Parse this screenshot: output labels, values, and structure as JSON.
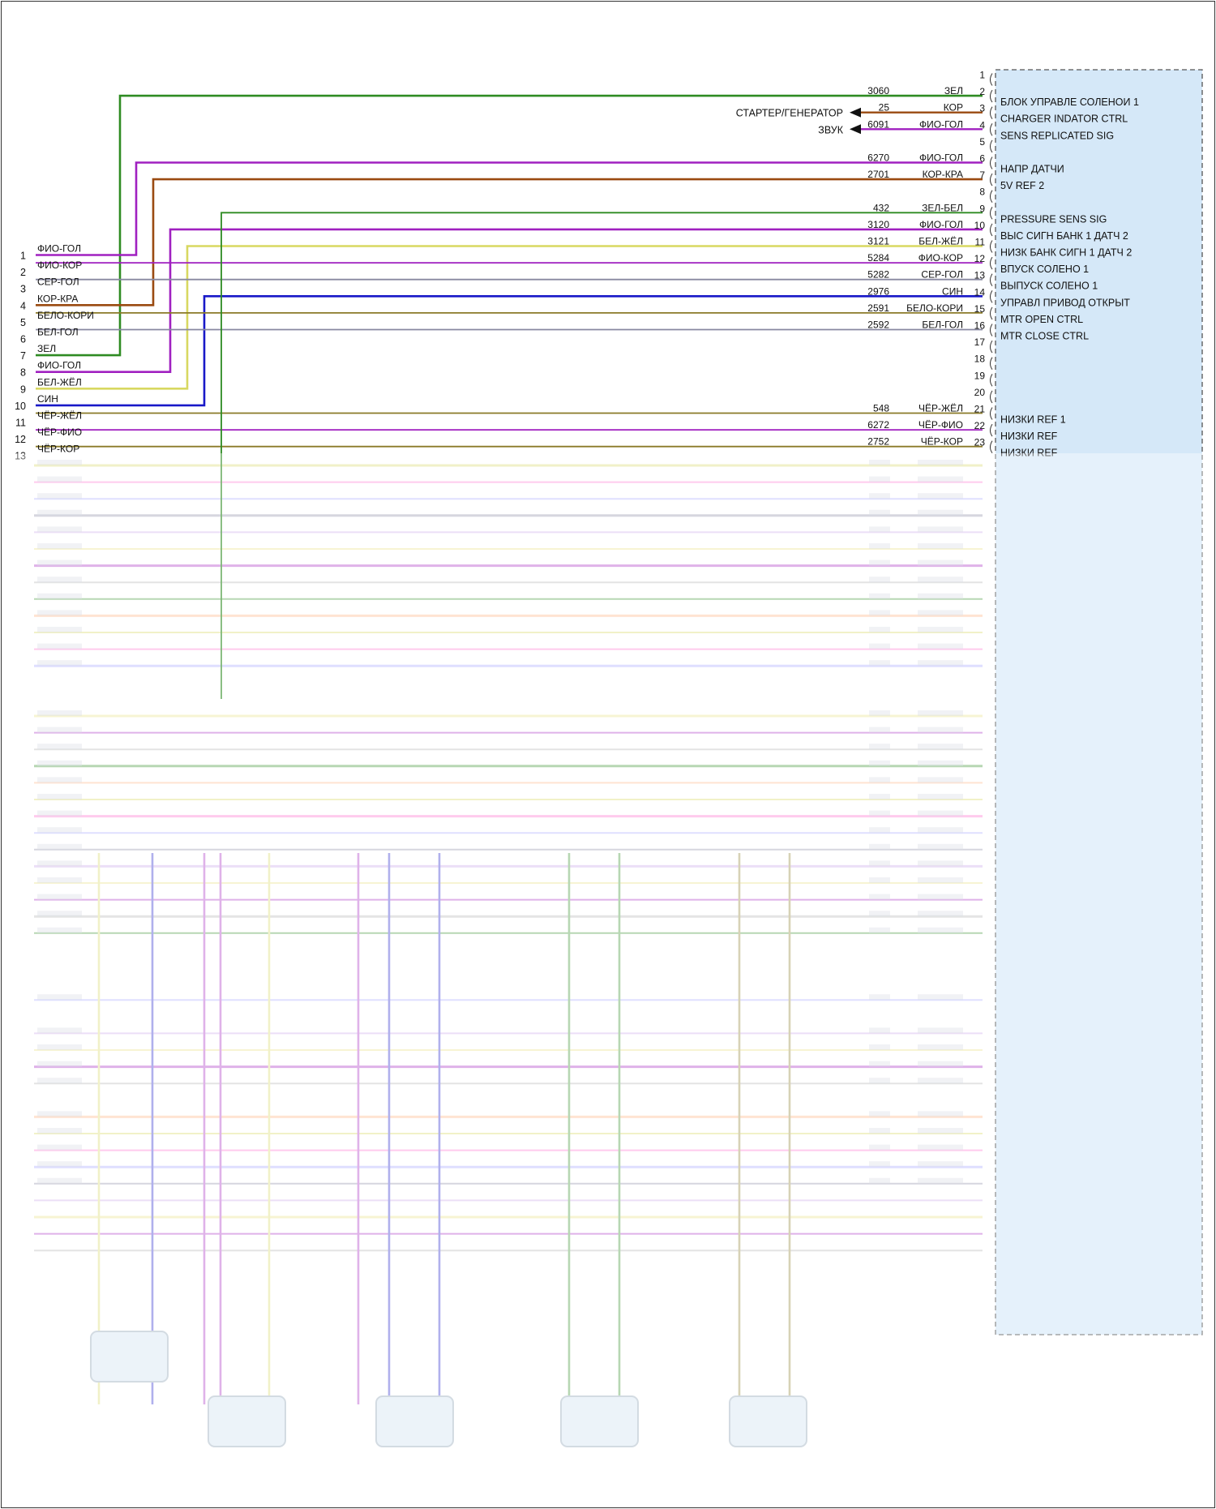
{
  "diagram": {
    "type": "wiring-diagram",
    "colors": {
      "green": "#2e8b22",
      "brown": "#9a4a10",
      "violet": "#a020c0",
      "blue": "#1818c8",
      "yellow": "#d8d860",
      "olive": "#8a7a28",
      "gray": "#8888a0",
      "module_fill": "#d5e8f8",
      "dark": "#222222"
    },
    "ecm_pins": [
      {
        "pin": "1",
        "circuit": "",
        "wire_color": "",
        "label": ""
      },
      {
        "pin": "2",
        "circuit": "3060",
        "wire_color": "ЗЕЛ",
        "label": "БЛОК УПРАВЛЕ СОЛЕНОИ 1"
      },
      {
        "pin": "3",
        "circuit": "25",
        "wire_color": "КОР",
        "label": "CHARGER INDATOR CTRL"
      },
      {
        "pin": "4",
        "circuit": "6091",
        "wire_color": "ФИО-ГОЛ",
        "label": "SENS REPLICATED SIG"
      },
      {
        "pin": "5",
        "circuit": "",
        "wire_color": "",
        "label": ""
      },
      {
        "pin": "6",
        "circuit": "6270",
        "wire_color": "ФИО-ГОЛ",
        "label": "НАПР ДАТЧИ"
      },
      {
        "pin": "7",
        "circuit": "2701",
        "wire_color": "КОР-КРА",
        "label": "5V REF 2"
      },
      {
        "pin": "8",
        "circuit": "",
        "wire_color": "",
        "label": ""
      },
      {
        "pin": "9",
        "circuit": "432",
        "wire_color": "ЗЕЛ-БЕЛ",
        "label": "PRESSURE SENS SIG"
      },
      {
        "pin": "10",
        "circuit": "3120",
        "wire_color": "ФИО-ГОЛ",
        "label": "ВЫС СИГН БАНК 1 ДАТЧ 2"
      },
      {
        "pin": "11",
        "circuit": "3121",
        "wire_color": "БЕЛ-ЖЁЛ",
        "label": "НИЗК БАНК СИГН 1 ДАТЧ 2"
      },
      {
        "pin": "12",
        "circuit": "5284",
        "wire_color": "ФИО-КОР",
        "label": "ВПУСК СОЛЕНО 1"
      },
      {
        "pin": "13",
        "circuit": "5282",
        "wire_color": "СЕР-ГОЛ",
        "label": "ВЫПУСК СОЛЕНО 1"
      },
      {
        "pin": "14",
        "circuit": "2976",
        "wire_color": "СИН",
        "label": "УПРАВЛ ПРИВОД ОТКРЫТ"
      },
      {
        "pin": "15",
        "circuit": "2591",
        "wire_color": "БЕЛО-КОРИ",
        "label": "MTR OPEN CTRL"
      },
      {
        "pin": "16",
        "circuit": "2592",
        "wire_color": "БЕЛ-ГОЛ",
        "label": "MTR CLOSE CTRL"
      },
      {
        "pin": "17",
        "circuit": "",
        "wire_color": "",
        "label": ""
      },
      {
        "pin": "18",
        "circuit": "",
        "wire_color": "",
        "label": ""
      },
      {
        "pin": "19",
        "circuit": "",
        "wire_color": "",
        "label": ""
      },
      {
        "pin": "20",
        "circuit": "",
        "wire_color": "",
        "label": ""
      },
      {
        "pin": "21",
        "circuit": "548",
        "wire_color": "ЧЁР-ЖЁЛ",
        "label": "НИЗКИ REF 1"
      },
      {
        "pin": "22",
        "circuit": "6272",
        "wire_color": "ЧЁР-ФИО",
        "label": "НИЗКИ REF"
      },
      {
        "pin": "23",
        "circuit": "2752",
        "wire_color": "ЧЁР-КОР",
        "label": "НИЗКИ REF"
      }
    ],
    "left_connector": [
      {
        "pin": "1",
        "wire_color": "ФИО-ГОЛ"
      },
      {
        "pin": "2",
        "wire_color": "ФИО-КОР"
      },
      {
        "pin": "3",
        "wire_color": "СЕР-ГОЛ"
      },
      {
        "pin": "4",
        "wire_color": "КОР-КРА"
      },
      {
        "pin": "5",
        "wire_color": "БЕЛО-КОРИ"
      },
      {
        "pin": "6",
        "wire_color": "БЕЛ-ГОЛ"
      },
      {
        "pin": "7",
        "wire_color": "ЗЕЛ"
      },
      {
        "pin": "8",
        "wire_color": "ФИО-ГОЛ"
      },
      {
        "pin": "9",
        "wire_color": "БЕЛ-ЖЁЛ"
      },
      {
        "pin": "10",
        "wire_color": "СИН"
      },
      {
        "pin": "11",
        "wire_color": "ЧЁР-ЖЁЛ"
      },
      {
        "pin": "12",
        "wire_color": "ЧЁР-ФИО"
      },
      {
        "pin": "13",
        "wire_color": "ЧЁР-КОР"
      }
    ],
    "outputs": {
      "starter": "СТАРТЕР/ГЕНЕРАТОР",
      "sound": "ЗВУК"
    }
  }
}
